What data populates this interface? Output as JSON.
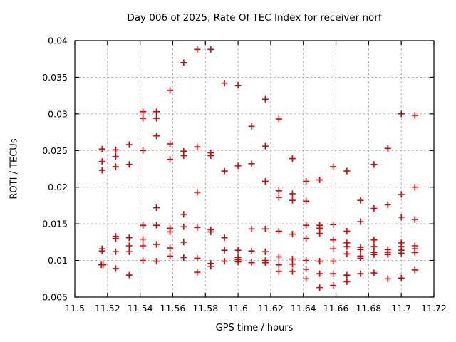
{
  "chart_data": {
    "type": "scatter",
    "title": "Day 006 of 2025, Rate Of TEC Index for receiver norf",
    "xlabel": "GPS time / hours",
    "ylabel": "ROTI / TECUs",
    "xlim": [
      11.5,
      11.72
    ],
    "ylim": [
      0.005,
      0.04
    ],
    "grid": true,
    "legend": "none",
    "marker": {
      "shape": "plus",
      "color": "#e00000",
      "half_size": 4.5,
      "stroke_width": 1.6
    },
    "axis_color": "#000000",
    "grid_color": "#a6a6a6",
    "background_color": "#ffffff",
    "xticks": {
      "values": [
        11.5,
        11.52,
        11.54,
        11.56,
        11.58,
        11.6,
        11.62,
        11.64,
        11.66,
        11.68,
        11.7,
        11.72
      ],
      "labels": [
        "11.5",
        "11.52",
        "11.54",
        "11.56",
        "11.58",
        "11.6",
        "11.62",
        "11.64",
        "11.66",
        "11.68",
        "11.7",
        "11.72"
      ]
    },
    "yticks": {
      "values": [
        0.005,
        0.01,
        0.015,
        0.02,
        0.025,
        0.03,
        0.035,
        0.04
      ],
      "labels": [
        "0.005",
        "0.01",
        "0.015",
        "0.02",
        "0.025",
        "0.03",
        "0.035",
        "0.04"
      ]
    },
    "series": [
      {
        "name": "ROTI",
        "points": [
          [
            11.5167,
            0.0252
          ],
          [
            11.5167,
            0.0235
          ],
          [
            11.5167,
            0.0223
          ],
          [
            11.5167,
            0.0116
          ],
          [
            11.5167,
            0.0113
          ],
          [
            11.5162,
            0.0094
          ],
          [
            11.5173,
            0.0094
          ],
          [
            11.525,
            0.0251
          ],
          [
            11.525,
            0.0242
          ],
          [
            11.525,
            0.0228
          ],
          [
            11.525,
            0.0133
          ],
          [
            11.525,
            0.013
          ],
          [
            11.525,
            0.0112
          ],
          [
            11.525,
            0.0089
          ],
          [
            11.5333,
            0.0258
          ],
          [
            11.5333,
            0.0231
          ],
          [
            11.5333,
            0.0131
          ],
          [
            11.5333,
            0.012
          ],
          [
            11.5333,
            0.0112
          ],
          [
            11.5333,
            0.008
          ],
          [
            11.5417,
            0.0303
          ],
          [
            11.5417,
            0.0294
          ],
          [
            11.5417,
            0.025
          ],
          [
            11.5417,
            0.0148
          ],
          [
            11.5417,
            0.0129
          ],
          [
            11.5417,
            0.012
          ],
          [
            11.5417,
            0.01
          ],
          [
            11.55,
            0.0303
          ],
          [
            11.55,
            0.0294
          ],
          [
            11.55,
            0.027
          ],
          [
            11.55,
            0.0172
          ],
          [
            11.55,
            0.0148
          ],
          [
            11.55,
            0.0122
          ],
          [
            11.55,
            0.0099
          ],
          [
            11.5583,
            0.0332
          ],
          [
            11.5583,
            0.0259
          ],
          [
            11.5583,
            0.0238
          ],
          [
            11.5583,
            0.0144
          ],
          [
            11.5583,
            0.0139
          ],
          [
            11.5583,
            0.0117
          ],
          [
            11.5583,
            0.0106
          ],
          [
            11.5667,
            0.037
          ],
          [
            11.5667,
            0.0249
          ],
          [
            11.5667,
            0.0243
          ],
          [
            11.5667,
            0.0163
          ],
          [
            11.5667,
            0.0146
          ],
          [
            11.5667,
            0.0125
          ],
          [
            11.5667,
            0.0104
          ],
          [
            11.575,
            0.0388
          ],
          [
            11.575,
            0.0255
          ],
          [
            11.575,
            0.0193
          ],
          [
            11.575,
            0.0145
          ],
          [
            11.575,
            0.0103
          ],
          [
            11.575,
            0.0084
          ],
          [
            11.5833,
            0.0388
          ],
          [
            11.5833,
            0.0247
          ],
          [
            11.5833,
            0.0243
          ],
          [
            11.5833,
            0.0142
          ],
          [
            11.5833,
            0.0139
          ],
          [
            11.5833,
            0.0096
          ],
          [
            11.5833,
            0.0092
          ],
          [
            11.5917,
            0.0342
          ],
          [
            11.5917,
            0.0222
          ],
          [
            11.5917,
            0.0131
          ],
          [
            11.5917,
            0.0114
          ],
          [
            11.5917,
            0.0099
          ],
          [
            11.6,
            0.0339
          ],
          [
            11.6,
            0.0229
          ],
          [
            11.6,
            0.0114
          ],
          [
            11.6,
            0.0104
          ],
          [
            11.6,
            0.0101
          ],
          [
            11.6,
            0.0098
          ],
          [
            11.6083,
            0.0283
          ],
          [
            11.6083,
            0.0232
          ],
          [
            11.6083,
            0.0143
          ],
          [
            11.6083,
            0.0113
          ],
          [
            11.6083,
            0.0097
          ],
          [
            11.6167,
            0.032
          ],
          [
            11.6167,
            0.0256
          ],
          [
            11.6167,
            0.0208
          ],
          [
            11.6167,
            0.0143
          ],
          [
            11.6167,
            0.0112
          ],
          [
            11.6167,
            0.01
          ],
          [
            11.6167,
            0.0097
          ],
          [
            11.625,
            0.0293
          ],
          [
            11.625,
            0.0195
          ],
          [
            11.625,
            0.0186
          ],
          [
            11.625,
            0.014
          ],
          [
            11.625,
            0.0105
          ],
          [
            11.625,
            0.0094
          ],
          [
            11.625,
            0.0085
          ],
          [
            11.6333,
            0.0239
          ],
          [
            11.6333,
            0.0191
          ],
          [
            11.6333,
            0.0182
          ],
          [
            11.6333,
            0.0136
          ],
          [
            11.6333,
            0.0102
          ],
          [
            11.6333,
            0.0095
          ],
          [
            11.6333,
            0.0085
          ],
          [
            11.6417,
            0.0208
          ],
          [
            11.6417,
            0.0181
          ],
          [
            11.6417,
            0.0148
          ],
          [
            11.6417,
            0.013
          ],
          [
            11.6417,
            0.01
          ],
          [
            11.6417,
            0.0088
          ],
          [
            11.6417,
            0.0075
          ],
          [
            11.65,
            0.021
          ],
          [
            11.65,
            0.0148
          ],
          [
            11.65,
            0.0144
          ],
          [
            11.65,
            0.0137
          ],
          [
            11.65,
            0.0099
          ],
          [
            11.65,
            0.0082
          ],
          [
            11.65,
            0.0063
          ],
          [
            11.6583,
            0.0228
          ],
          [
            11.6583,
            0.0149
          ],
          [
            11.6583,
            0.0128
          ],
          [
            11.6583,
            0.0116
          ],
          [
            11.6583,
            0.0099
          ],
          [
            11.6583,
            0.0082
          ],
          [
            11.6583,
            0.0066
          ],
          [
            11.6667,
            0.0222
          ],
          [
            11.6667,
            0.014
          ],
          [
            11.6667,
            0.0124
          ],
          [
            11.6667,
            0.0119
          ],
          [
            11.6667,
            0.0109
          ],
          [
            11.6667,
            0.008
          ],
          [
            11.6667,
            0.0071
          ],
          [
            11.675,
            0.0182
          ],
          [
            11.675,
            0.0153
          ],
          [
            11.675,
            0.0118
          ],
          [
            11.675,
            0.0115
          ],
          [
            11.675,
            0.0106
          ],
          [
            11.675,
            0.0103
          ],
          [
            11.675,
            0.0082
          ],
          [
            11.6833,
            0.0231
          ],
          [
            11.6833,
            0.0171
          ],
          [
            11.6833,
            0.0128
          ],
          [
            11.6833,
            0.0119
          ],
          [
            11.6833,
            0.0111
          ],
          [
            11.6833,
            0.0108
          ],
          [
            11.6833,
            0.0083
          ],
          [
            11.6917,
            0.0253
          ],
          [
            11.6917,
            0.0176
          ],
          [
            11.6917,
            0.0115
          ],
          [
            11.6917,
            0.0111
          ],
          [
            11.6917,
            0.0108
          ],
          [
            11.6917,
            0.0075
          ],
          [
            11.7,
            0.03
          ],
          [
            11.7,
            0.019
          ],
          [
            11.7,
            0.0159
          ],
          [
            11.7,
            0.0124
          ],
          [
            11.7,
            0.0119
          ],
          [
            11.7,
            0.0114
          ],
          [
            11.7,
            0.011
          ],
          [
            11.7,
            0.0076
          ],
          [
            11.7083,
            0.0298
          ],
          [
            11.7083,
            0.02
          ],
          [
            11.7083,
            0.0156
          ],
          [
            11.7083,
            0.012
          ],
          [
            11.7083,
            0.0116
          ],
          [
            11.7083,
            0.0111
          ],
          [
            11.7083,
            0.0087
          ]
        ]
      }
    ]
  }
}
